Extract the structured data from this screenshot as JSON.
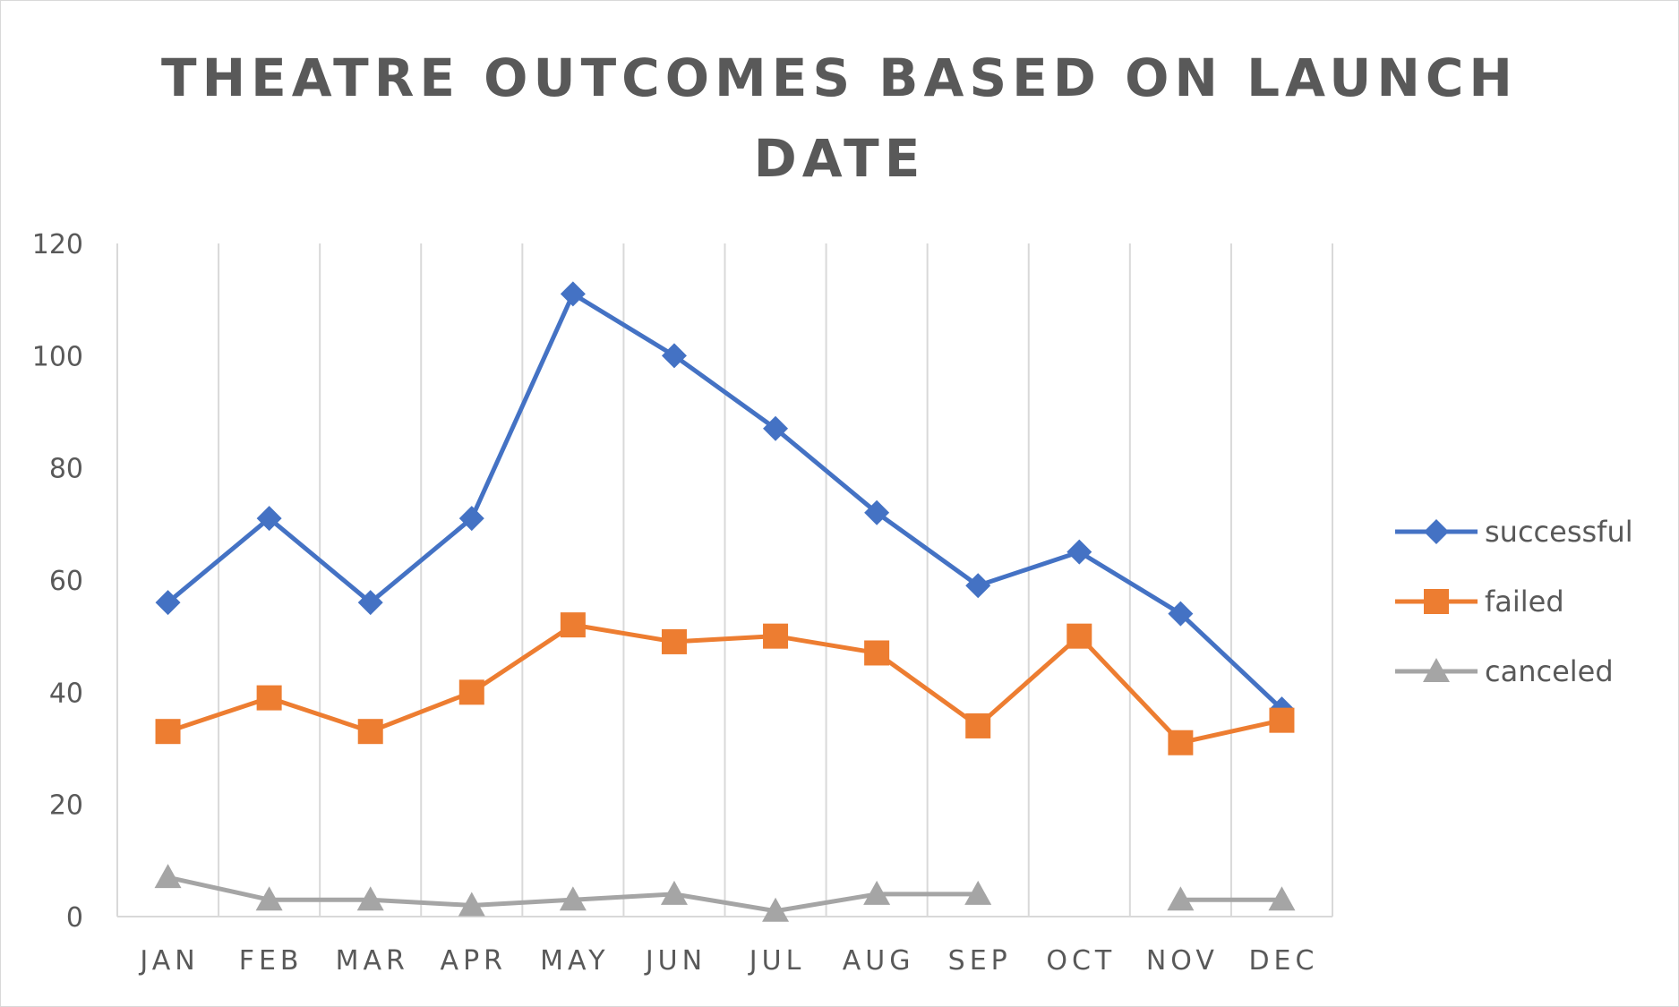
{
  "chart_data": {
    "type": "line",
    "title": "THEATRE OUTCOMES BASED ON LAUNCH DATE",
    "categories": [
      "JAN",
      "FEB",
      "MAR",
      "APR",
      "MAY",
      "JUN",
      "JUL",
      "AUG",
      "SEP",
      "OCT",
      "NOV",
      "DEC"
    ],
    "series": [
      {
        "name": "successful",
        "color": "#4472C4",
        "marker": "diamond",
        "values": [
          56,
          71,
          56,
          71,
          111,
          100,
          87,
          72,
          59,
          65,
          54,
          37
        ]
      },
      {
        "name": "failed",
        "color": "#ED7D31",
        "marker": "square",
        "values": [
          33,
          39,
          33,
          40,
          52,
          49,
          50,
          47,
          34,
          50,
          31,
          35
        ]
      },
      {
        "name": "canceled",
        "color": "#A5A5A5",
        "marker": "triangle",
        "values": [
          7,
          3,
          3,
          2,
          3,
          4,
          1,
          4,
          4,
          null,
          3,
          3
        ]
      }
    ],
    "ylim": [
      0,
      120
    ],
    "yticks": [
      "0",
      "20",
      "40",
      "60",
      "80",
      "100",
      "120"
    ],
    "grid": "vertical",
    "legend": "right"
  }
}
